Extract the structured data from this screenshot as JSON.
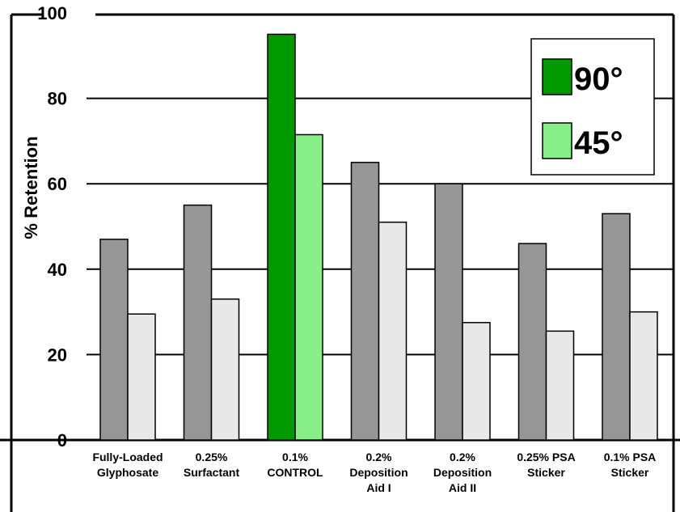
{
  "chart_data": {
    "type": "bar",
    "ylabel": "% Retention",
    "xlabel": "",
    "ylim": [
      0,
      100
    ],
    "yticks": [
      0,
      20,
      40,
      60,
      80,
      100
    ],
    "grid": true,
    "legend_position": "top-right",
    "categories": [
      [
        "Fully-Loaded",
        "Glyphosate"
      ],
      [
        "0.25%",
        "Surfactant"
      ],
      [
        "0.1%",
        "CONTROL"
      ],
      [
        "0.2%",
        "Deposition",
        "Aid I"
      ],
      [
        "0.2%",
        "Deposition",
        "Aid II"
      ],
      [
        "0.25% PSA",
        "Sticker"
      ],
      [
        "0.1% PSA",
        "Sticker"
      ]
    ],
    "highlight_index": 2,
    "series": [
      {
        "name": "90°",
        "values": [
          47,
          55,
          95,
          65,
          60,
          46,
          53
        ]
      },
      {
        "name": "45°",
        "values": [
          29.5,
          33,
          71.5,
          51,
          27.5,
          25.5,
          30
        ]
      }
    ],
    "colors": {
      "series_90_highlight": "#009900",
      "series_45_highlight": "#88ee88",
      "series_90_default": "#969696",
      "series_45_default": "#e8e8e8",
      "legend_90": "#009900",
      "legend_45": "#88ee88"
    }
  }
}
